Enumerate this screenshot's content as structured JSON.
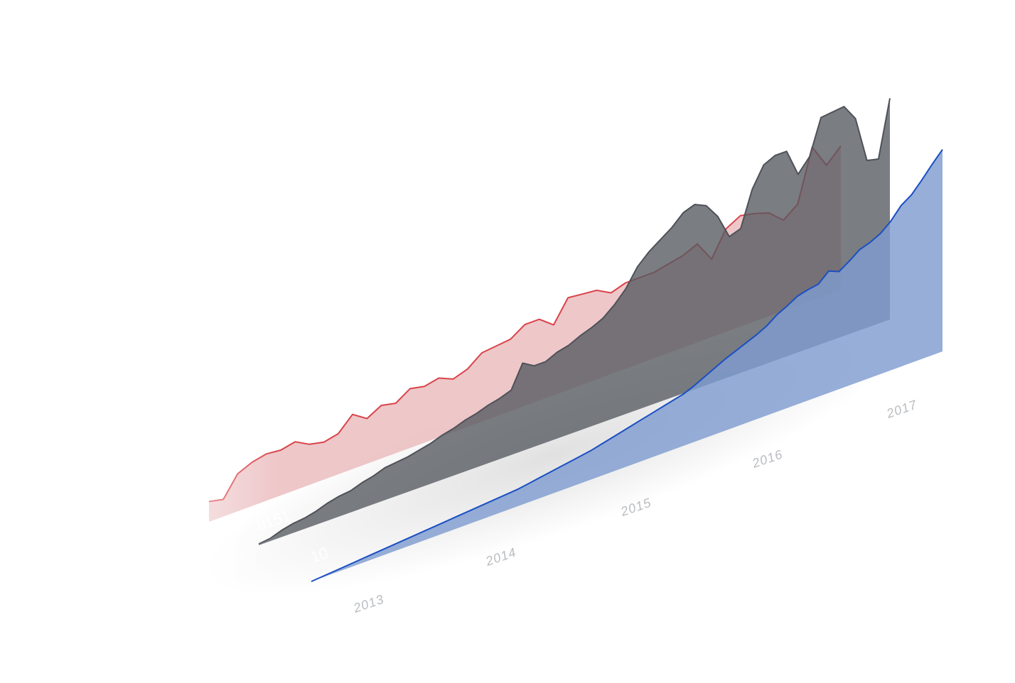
{
  "page": {
    "background": "#ffffff"
  },
  "chart_data": {
    "type": "area",
    "x_tick_labels": [
      "2013",
      "2014",
      "2015",
      "2016",
      "2017"
    ],
    "panel_labels": [
      "8151",
      "10"
    ],
    "cropped_labels": [
      "4"
    ],
    "series": [
      {
        "key": "back",
        "fill": "#eab9bc",
        "fill_opacity": 0.8,
        "line": "#d9444b",
        "values": [
          0.13,
          0.11,
          0.24,
          0.28,
          0.3,
          0.29,
          0.31,
          0.26,
          0.24,
          0.26,
          0.35,
          0.29,
          0.34,
          0.32,
          0.38,
          0.36,
          0.38,
          0.34,
          0.37,
          0.44,
          0.45,
          0.46,
          0.52,
          0.52,
          0.45,
          0.59,
          0.58,
          0.57,
          0.52,
          0.55,
          0.55,
          0.55,
          0.57,
          0.59,
          0.63,
          0.5,
          0.66,
          0.71,
          0.69,
          0.66,
          0.58,
          0.65,
          0.98,
          0.83,
          0.92
        ]
      },
      {
        "key": "middle",
        "fill": "#55595f",
        "fill_opacity": 0.78,
        "line": "#4e5258",
        "values": [
          0.01,
          0.02,
          0.05,
          0.07,
          0.08,
          0.1,
          0.13,
          0.15,
          0.16,
          0.19,
          0.21,
          0.24,
          0.25,
          0.26,
          0.28,
          0.3,
          0.33,
          0.35,
          0.38,
          0.4,
          0.43,
          0.45,
          0.48,
          0.65,
          0.6,
          0.6,
          0.64,
          0.66,
          0.7,
          0.73,
          0.77,
          0.84,
          0.93,
          1.06,
          1.14,
          1.2,
          1.26,
          1.34,
          1.37,
          1.33,
          1.22,
          1.04,
          1.07,
          1.33,
          1.48,
          1.52,
          1.52,
          1.32,
          1.42,
          1.68,
          1.69,
          1.7,
          1.58,
          1.24,
          1.22,
          1.64
        ]
      },
      {
        "key": "front",
        "fill": "#7f9ccf",
        "fill_opacity": 0.82,
        "line": "#1b4fc2",
        "values": [
          0.0,
          0.01,
          0.02,
          0.03,
          0.04,
          0.05,
          0.06,
          0.07,
          0.08,
          0.09,
          0.1,
          0.11,
          0.12,
          0.13,
          0.14,
          0.15,
          0.16,
          0.17,
          0.18,
          0.19,
          0.2,
          0.22,
          0.24,
          0.26,
          0.28,
          0.3,
          0.32,
          0.34,
          0.37,
          0.4,
          0.43,
          0.46,
          0.49,
          0.52,
          0.55,
          0.58,
          0.61,
          0.66,
          0.72,
          0.78,
          0.84,
          0.89,
          0.94,
          0.99,
          1.05,
          1.14,
          1.2,
          1.27,
          1.3,
          1.32,
          1.43,
          1.38,
          1.46,
          1.55,
          1.59,
          1.65,
          1.75,
          1.89,
          1.97,
          2.1,
          2.24,
          2.37
        ]
      }
    ]
  }
}
